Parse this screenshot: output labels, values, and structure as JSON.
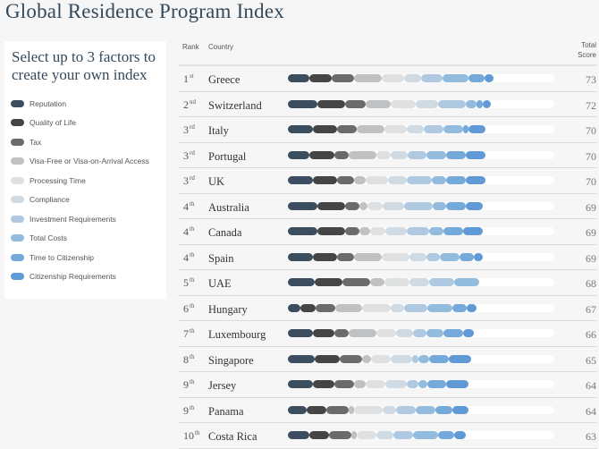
{
  "title": "Global Residence Program Index",
  "panel": {
    "heading": "Select up to 3 factors to create your own index"
  },
  "chart_data": {
    "type": "bar",
    "stacked": true,
    "orientation": "horizontal",
    "columns": {
      "rank": "Rank",
      "country": "Country",
      "score_line1": "Total",
      "score_line2": "Score"
    },
    "factors": [
      {
        "name": "Reputation",
        "color": "#3b4d5e"
      },
      {
        "name": "Quality of Life",
        "color": "#454545"
      },
      {
        "name": "Tax",
        "color": "#6b6b6b"
      },
      {
        "name": "Visa-Free or Visa-on-Arrival Access",
        "color": "#c0c1c3"
      },
      {
        "name": "Processing Time",
        "color": "#dfe0e1"
      },
      {
        "name": "Compliance",
        "color": "#cfdae3"
      },
      {
        "name": "Investment Requirements",
        "color": "#aec9e0"
      },
      {
        "name": "Total Costs",
        "color": "#92bbdd"
      },
      {
        "name": "Time to Citizenship",
        "color": "#75a9da"
      },
      {
        "name": "Citizenship Requirements",
        "color": "#5f9ad6"
      }
    ],
    "rows": [
      {
        "rank": "1",
        "suffix": "st",
        "country": "Greece",
        "score": 73,
        "values": [
          7.5,
          7.9,
          8.2,
          9.7,
          8.1,
          5.9,
          7.7,
          9.0,
          5.9,
          3.0
        ]
      },
      {
        "rank": "2",
        "suffix": "nd",
        "country": "Switzerland",
        "score": 72,
        "values": [
          10.6,
          9.8,
          7.1,
          9.0,
          8.8,
          7.9,
          10.1,
          3.7,
          2.1,
          3.0
        ]
      },
      {
        "rank": "3",
        "suffix": "rd",
        "country": "Italy",
        "score": 70,
        "values": [
          8.8,
          8.8,
          6.9,
          9.9,
          7.9,
          6.0,
          6.8,
          7.1,
          1.9,
          6.0
        ]
      },
      {
        "rank": "3",
        "suffix": "rd",
        "country": "Portugal",
        "score": 70,
        "values": [
          7.5,
          9.0,
          5.1,
          9.9,
          5.1,
          5.8,
          6.9,
          6.9,
          7.0,
          7.0
        ]
      },
      {
        "rank": "3",
        "suffix": "rd",
        "country": "UK",
        "score": 70,
        "values": [
          8.8,
          8.8,
          6.0,
          3.9,
          8.0,
          6.8,
          8.8,
          5.0,
          7.0,
          7.0
        ]
      },
      {
        "rank": "4",
        "suffix": "th",
        "country": "Australia",
        "score": 69,
        "values": [
          10.6,
          9.8,
          5.0,
          3.0,
          5.1,
          7.8,
          10.2,
          4.7,
          7.0,
          6.0
        ]
      },
      {
        "rank": "4",
        "suffix": "th",
        "country": "Canada",
        "score": 69,
        "values": [
          10.6,
          9.8,
          5.0,
          3.8,
          5.3,
          7.6,
          8.1,
          4.9,
          7.1,
          6.9
        ]
      },
      {
        "rank": "4",
        "suffix": "th",
        "country": "Spain",
        "score": 69,
        "values": [
          8.8,
          8.8,
          6.0,
          9.8,
          9.9,
          5.9,
          4.8,
          7.1,
          4.8,
          3.2
        ]
      },
      {
        "rank": "5",
        "suffix": "th",
        "country": "UAE",
        "score": 68,
        "values": [
          9.6,
          9.9,
          9.8,
          5.0,
          9.0,
          7.0,
          8.9,
          8.8,
          0,
          0
        ]
      },
      {
        "rank": "6",
        "suffix": "th",
        "country": "Hungary",
        "score": 67,
        "values": [
          4.6,
          5.1,
          7.1,
          9.7,
          10.1,
          4.8,
          8.0,
          8.9,
          5.1,
          3.7
        ]
      },
      {
        "rank": "7",
        "suffix": "th",
        "country": "Luxembourg",
        "score": 66,
        "values": [
          8.8,
          7.7,
          5.2,
          9.8,
          6.9,
          6.0,
          4.9,
          5.8,
          7.1,
          3.9
        ]
      },
      {
        "rank": "8",
        "suffix": "th",
        "country": "Singapore",
        "score": 65,
        "values": [
          9.6,
          8.9,
          7.9,
          3.0,
          7.1,
          7.7,
          2.1,
          4.0,
          6.8,
          7.9
        ]
      },
      {
        "rank": "9",
        "suffix": "th",
        "country": "Jersey",
        "score": 64,
        "values": [
          8.8,
          7.7,
          7.1,
          3.9,
          7.0,
          7.8,
          4.0,
          3.2,
          6.6,
          8.0
        ]
      },
      {
        "rank": "9",
        "suffix": "th",
        "country": "Panama",
        "score": 64,
        "values": [
          6.7,
          6.9,
          8.1,
          1.9,
          10.1,
          4.8,
          6.9,
          6.9,
          6.0,
          5.9
        ]
      },
      {
        "rank": "10",
        "suffix": "th",
        "country": "Costa Rica",
        "score": 63,
        "values": [
          7.7,
          6.9,
          7.9,
          1.8,
          7.2,
          6.1,
          6.8,
          8.8,
          6.0,
          4.0
        ]
      }
    ]
  }
}
